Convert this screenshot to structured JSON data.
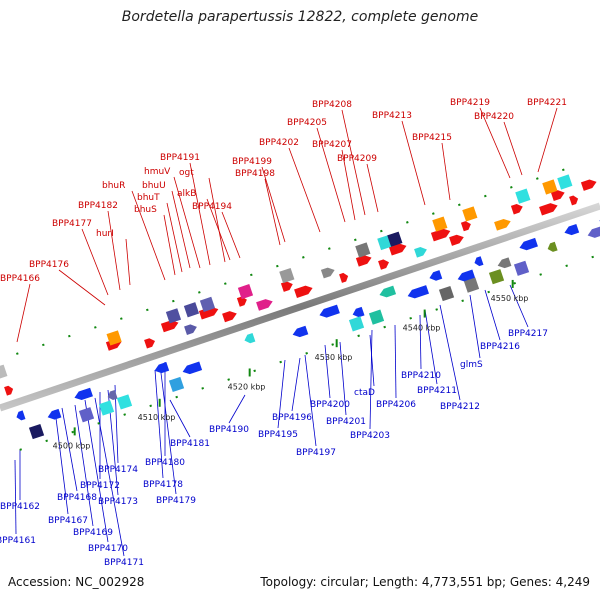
{
  "title": "Bordetella parapertussis 12822, complete genome",
  "accession": "Accession: NC_002928",
  "summary": "Topology: circular; Length: 4,773,551 bp; Genes: 4,249",
  "colors": {
    "forward_label": "#cc0000",
    "reverse_label": "#0000cc",
    "forward_gene": "#ee1111",
    "reverse_gene": "#1133ee",
    "axis": "#888888",
    "tick": "#118811"
  },
  "ticks": [
    {
      "label": "4500 kbp"
    },
    {
      "label": "4510 kbp"
    },
    {
      "label": "4520 kbp"
    },
    {
      "label": "4530 kbp"
    },
    {
      "label": "4540 kbp"
    },
    {
      "label": "4550 kbp"
    }
  ],
  "forward_labels": [
    "BPP4166",
    "BPP4176",
    "BPP4177",
    "BPP4182",
    "hurI",
    "bhuR",
    "bhuS",
    "bhuT",
    "bhuU",
    "hmuV",
    "BPP4191",
    "ogt",
    "alkB",
    "BPP4194",
    "BPP4198",
    "BPP4199",
    "BPP4202",
    "BPP4205",
    "BPP4207",
    "BPP4208",
    "BPP4209",
    "BPP4213",
    "BPP4215",
    "BPP4219",
    "BPP4220",
    "BPP4221"
  ],
  "reverse_labels": [
    "BPP4161",
    "BPP4162",
    "BPP4167",
    "BPP4168",
    "BPP4169",
    "BPP4170",
    "BPP4171",
    "BPP4172",
    "BPP4173",
    "BPP4174",
    "BPP4178",
    "BPP4179",
    "BPP4180",
    "BPP4181",
    "BPP4190",
    "BPP4195",
    "BPP4196",
    "BPP4197",
    "BPP4200",
    "BPP4201",
    "ctaD",
    "BPP4203",
    "BPP4206",
    "BPP4210",
    "BPP4211",
    "BPP4212",
    "glmS",
    "BPP4216",
    "BPP4217"
  ]
}
